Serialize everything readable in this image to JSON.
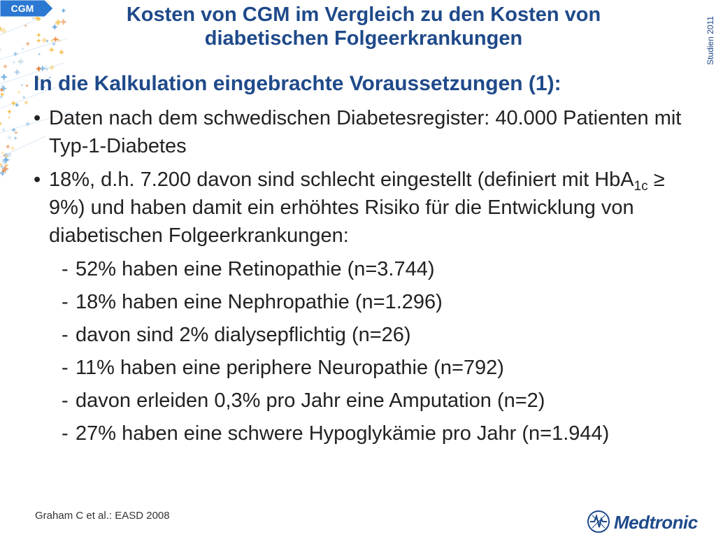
{
  "badge": {
    "label": "CGM",
    "color": "#2b78d3"
  },
  "title": {
    "line1": "Kosten von CGM im Vergleich zu den Kosten von",
    "line2": "diabetischen Folgeerkrankungen"
  },
  "side_label": "Studien 2011",
  "subheading": "In die Kalkulation eingebrachte Voraussetzungen (1):",
  "bullets": [
    {
      "mark": "•",
      "text": "Daten nach dem schwedischen Diabetesregister: 40.000 Patienten mit Typ-1-Diabetes"
    },
    {
      "mark": "•",
      "text_before": "18%, d.h. 7.200 davon sind schlecht eingestellt (definiert mit HbA",
      "subscript": "1c",
      "text_after": " ≥ 9%) und haben damit ein erhöhtes Risiko für die Entwicklung von diabetischen Folgeerkrankungen:"
    }
  ],
  "sub_items": [
    {
      "mark": "-",
      "text": "52% haben eine Retinopathie (n=3.744)"
    },
    {
      "mark": "-",
      "text": "18% haben eine Nephropathie (n=1.296)"
    },
    {
      "mark": "-",
      "text": "davon sind 2% dialysepflichtig (n=26)"
    },
    {
      "mark": "-",
      "text": "11% haben eine periphere Neuropathie (n=792)"
    },
    {
      "mark": "-",
      "text": "davon erleiden 0,3% pro Jahr eine Amputation (n=2)"
    },
    {
      "mark": "-",
      "text": "27% haben eine schwere Hypoglykämie pro Jahr (n=1.944)"
    }
  ],
  "citation": "Graham C et al.: EASD 2008",
  "logo": {
    "text": "Medtronic",
    "icon": "medtronic-logo-icon"
  },
  "colors": {
    "heading": "#1f4a8a",
    "body_text": "#222222",
    "badge": "#2b78d3"
  }
}
